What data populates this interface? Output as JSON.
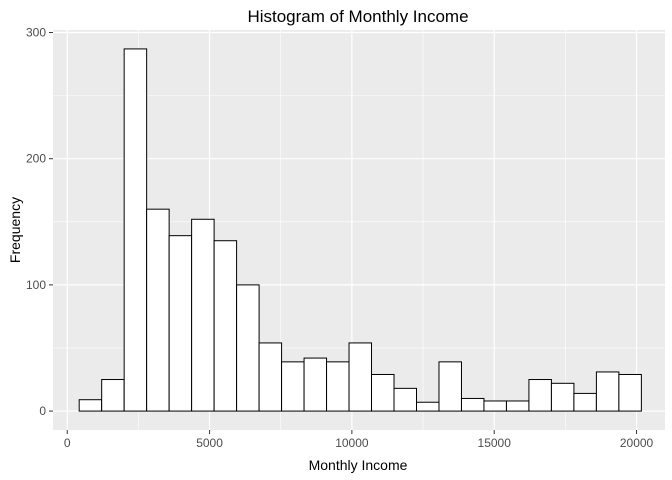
{
  "chart_data": {
    "type": "bar",
    "subtype": "histogram",
    "title": "Histogram of Monthly Income",
    "xlabel": "Monthly Income",
    "ylabel": "Frequency",
    "xlim": [
      -500,
      21000
    ],
    "ylim": [
      -15,
      302
    ],
    "x_ticks": [
      0,
      5000,
      10000,
      15000,
      20000
    ],
    "y_ticks": [
      0,
      100,
      200,
      300
    ],
    "grid": true,
    "bins": [
      {
        "x0": 420,
        "x1": 1210,
        "count": 9
      },
      {
        "x0": 1210,
        "x1": 2000,
        "count": 25
      },
      {
        "x0": 2000,
        "x1": 2790,
        "count": 287
      },
      {
        "x0": 2790,
        "x1": 3580,
        "count": 160
      },
      {
        "x0": 3580,
        "x1": 4370,
        "count": 139
      },
      {
        "x0": 4370,
        "x1": 5160,
        "count": 152
      },
      {
        "x0": 5160,
        "x1": 5950,
        "count": 135
      },
      {
        "x0": 5950,
        "x1": 6740,
        "count": 100
      },
      {
        "x0": 6740,
        "x1": 7530,
        "count": 54
      },
      {
        "x0": 7530,
        "x1": 8320,
        "count": 39
      },
      {
        "x0": 8320,
        "x1": 9110,
        "count": 42
      },
      {
        "x0": 9110,
        "x1": 9900,
        "count": 39
      },
      {
        "x0": 9900,
        "x1": 10690,
        "count": 54
      },
      {
        "x0": 10690,
        "x1": 11480,
        "count": 29
      },
      {
        "x0": 11480,
        "x1": 12270,
        "count": 18
      },
      {
        "x0": 12270,
        "x1": 13060,
        "count": 7
      },
      {
        "x0": 13060,
        "x1": 13850,
        "count": 39
      },
      {
        "x0": 13850,
        "x1": 14640,
        "count": 10
      },
      {
        "x0": 14640,
        "x1": 15430,
        "count": 8
      },
      {
        "x0": 15430,
        "x1": 16220,
        "count": 8
      },
      {
        "x0": 16220,
        "x1": 17010,
        "count": 25
      },
      {
        "x0": 17010,
        "x1": 17800,
        "count": 22
      },
      {
        "x0": 17800,
        "x1": 18590,
        "count": 14
      },
      {
        "x0": 18590,
        "x1": 19380,
        "count": 31
      },
      {
        "x0": 19380,
        "x1": 20170,
        "count": 29
      }
    ],
    "colors": {
      "panel": "#ebebeb",
      "grid": "#ffffff",
      "bar_fill": "#ffffff",
      "bar_stroke": "#000000",
      "tick": "#333333"
    }
  }
}
